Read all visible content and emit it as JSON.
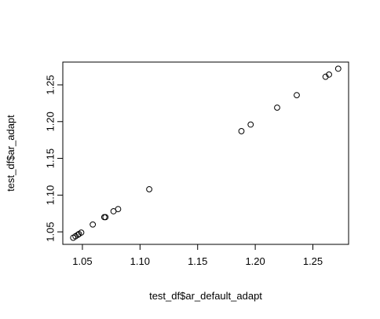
{
  "chart_data": {
    "type": "scatter",
    "title": "",
    "xlabel": "test_df$ar_default_adapt",
    "ylabel": "test_df$ar_adapt",
    "xlim": [
      1.033,
      1.281
    ],
    "ylim": [
      1.033,
      1.281
    ],
    "x_ticks": [
      1.05,
      1.1,
      1.15,
      1.2,
      1.25
    ],
    "x_tick_labels": [
      "1.05",
      "1.10",
      "1.15",
      "1.20",
      "1.25"
    ],
    "y_ticks": [
      1.05,
      1.1,
      1.15,
      1.2,
      1.25
    ],
    "y_tick_labels": [
      "1.05",
      "1.10",
      "1.15",
      "1.20",
      "1.25"
    ],
    "grid": false,
    "marker": "open-circle",
    "marker_color": "#000000",
    "points": [
      {
        "x": 1.042,
        "y": 1.042
      },
      {
        "x": 1.044,
        "y": 1.044
      },
      {
        "x": 1.046,
        "y": 1.046
      },
      {
        "x": 1.047,
        "y": 1.047
      },
      {
        "x": 1.049,
        "y": 1.049
      },
      {
        "x": 1.059,
        "y": 1.06
      },
      {
        "x": 1.069,
        "y": 1.07
      },
      {
        "x": 1.07,
        "y": 1.07
      },
      {
        "x": 1.077,
        "y": 1.078
      },
      {
        "x": 1.081,
        "y": 1.081
      },
      {
        "x": 1.108,
        "y": 1.108
      },
      {
        "x": 1.188,
        "y": 1.187
      },
      {
        "x": 1.196,
        "y": 1.196
      },
      {
        "x": 1.219,
        "y": 1.219
      },
      {
        "x": 1.236,
        "y": 1.236
      },
      {
        "x": 1.261,
        "y": 1.261
      },
      {
        "x": 1.264,
        "y": 1.264
      },
      {
        "x": 1.272,
        "y": 1.272
      }
    ]
  }
}
